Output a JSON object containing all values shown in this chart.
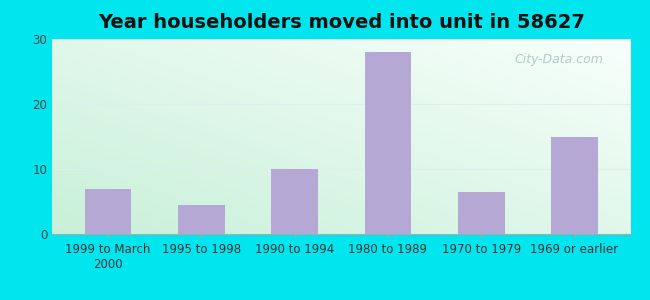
{
  "title": "Year householders moved into unit in 58627",
  "categories": [
    "1999 to March\n2000",
    "1995 to 1998",
    "1990 to 1994",
    "1980 to 1989",
    "1970 to 1979",
    "1969 or earlier"
  ],
  "values": [
    7,
    4.5,
    10,
    28,
    6.5,
    15
  ],
  "bar_color": "#b5a8d5",
  "background_outer": "#00e5ee",
  "gradient_bottom_left": "#c8f0d8",
  "gradient_top_right": "#f8fffc",
  "ylim": [
    0,
    30
  ],
  "yticks": [
    0,
    10,
    20,
    30
  ],
  "title_fontsize": 14,
  "tick_fontsize": 8.5,
  "watermark": "City-Data.com",
  "figwidth": 6.5,
  "figheight": 3.0,
  "dpi": 100
}
